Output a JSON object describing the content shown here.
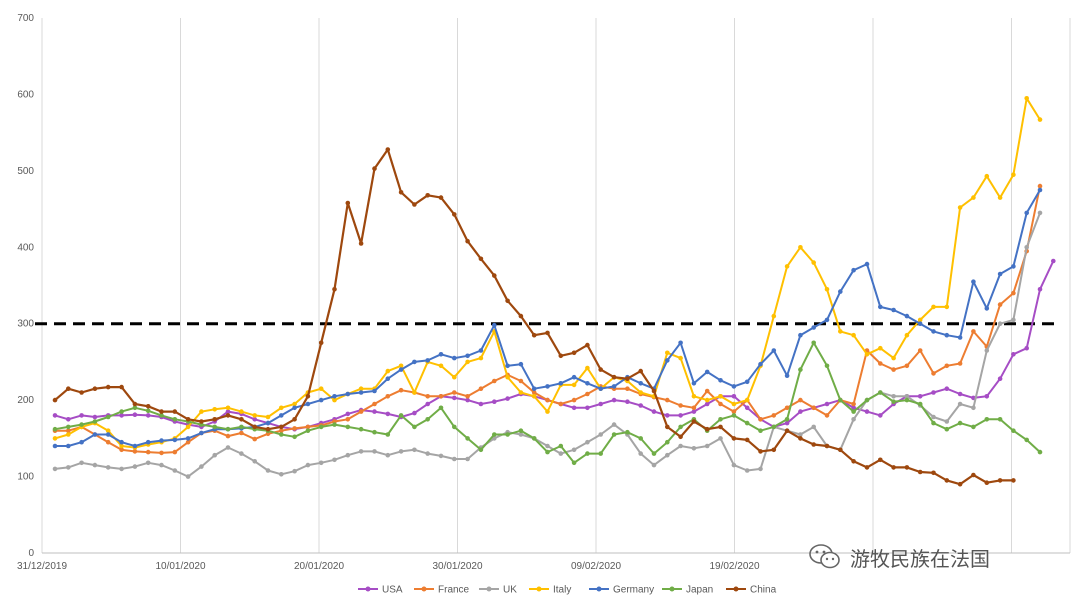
{
  "chart_data": {
    "type": "line",
    "title": "",
    "xlabel": "",
    "ylabel": "",
    "ylim": [
      0,
      700
    ],
    "yticks": [
      0,
      100,
      200,
      300,
      400,
      500,
      600,
      700
    ],
    "x_ticks": [
      "31/12/2019",
      "10/01/2020",
      "20/01/2020",
      "30/01/2020",
      "09/02/2020",
      "19/02/2020"
    ],
    "grid": "vertical",
    "legend_position": "bottom",
    "reference_line": 300,
    "colors": {
      "USA": "#a64dc5",
      "France": "#ed7d31",
      "UK": "#a5a5a5",
      "Italy": "#ffc000",
      "Germany": "#4472c4",
      "Japan": "#70ad47",
      "China": "#9e480e"
    },
    "series": [
      {
        "name": "USA",
        "values": [
          180,
          175,
          180,
          178,
          180,
          180,
          181,
          180,
          178,
          172,
          168,
          165,
          172,
          185,
          182,
          175,
          170,
          165,
          162,
          165,
          170,
          175,
          182,
          187,
          185,
          182,
          178,
          183,
          195,
          205,
          203,
          200,
          195,
          198,
          202,
          208,
          205,
          200,
          195,
          190,
          190,
          195,
          200,
          198,
          193,
          185,
          180,
          180,
          185,
          195,
          205,
          205,
          190,
          175,
          165,
          170,
          185,
          190,
          195,
          200,
          190,
          185,
          180,
          195,
          205,
          205,
          210,
          215,
          208,
          203,
          205,
          228,
          260,
          268,
          345,
          382
        ]
      },
      {
        "name": "France",
        "values": [
          160,
          160,
          165,
          155,
          145,
          135,
          133,
          132,
          131,
          132,
          145,
          157,
          160,
          153,
          157,
          149,
          156,
          160,
          163,
          165,
          167,
          172,
          175,
          185,
          195,
          205,
          213,
          210,
          205,
          205,
          210,
          205,
          215,
          225,
          233,
          225,
          210,
          200,
          195,
          200,
          208,
          218,
          215,
          215,
          208,
          204,
          200,
          193,
          190,
          212,
          195,
          185,
          200,
          175,
          180,
          190,
          200,
          190,
          180,
          200,
          195,
          265,
          248,
          240,
          245,
          265,
          235,
          245,
          248,
          290,
          270,
          325,
          340,
          395,
          480
        ]
      },
      {
        "name": "UK",
        "values": [
          110,
          112,
          118,
          115,
          112,
          110,
          113,
          118,
          115,
          108,
          100,
          113,
          128,
          138,
          130,
          120,
          108,
          103,
          107,
          115,
          118,
          122,
          128,
          133,
          133,
          128,
          133,
          135,
          130,
          127,
          123,
          123,
          138,
          150,
          158,
          155,
          150,
          140,
          130,
          135,
          145,
          155,
          168,
          155,
          130,
          115,
          128,
          140,
          137,
          140,
          150,
          115,
          108,
          110,
          165,
          160,
          155,
          165,
          140,
          135,
          175,
          200,
          210,
          205,
          205,
          193,
          178,
          172,
          195,
          190,
          265,
          300,
          305,
          400,
          445
        ]
      },
      {
        "name": "Italy",
        "values": [
          150,
          155,
          165,
          170,
          160,
          140,
          138,
          142,
          145,
          150,
          165,
          185,
          188,
          190,
          185,
          180,
          178,
          190,
          195,
          210,
          215,
          200,
          208,
          215,
          215,
          238,
          245,
          210,
          250,
          245,
          230,
          250,
          255,
          290,
          230,
          210,
          205,
          185,
          220,
          220,
          242,
          215,
          230,
          225,
          210,
          205,
          262,
          255,
          205,
          200,
          205,
          195,
          200,
          245,
          310,
          375,
          400,
          380,
          345,
          290,
          285,
          260,
          268,
          255,
          285,
          305,
          322,
          322,
          452,
          465,
          493,
          465,
          495,
          595,
          567
        ]
      },
      {
        "name": "Germany",
        "values": [
          140,
          140,
          145,
          155,
          155,
          145,
          140,
          145,
          147,
          148,
          150,
          157,
          162,
          162,
          163,
          165,
          170,
          180,
          190,
          195,
          200,
          205,
          208,
          210,
          212,
          228,
          240,
          250,
          252,
          260,
          255,
          258,
          265,
          298,
          245,
          247,
          215,
          218,
          222,
          230,
          222,
          215,
          218,
          230,
          222,
          215,
          252,
          275,
          222,
          237,
          226,
          218,
          224,
          247,
          265,
          232,
          285,
          295,
          305,
          342,
          370,
          378,
          322,
          318,
          310,
          300,
          290,
          285,
          282,
          355,
          320,
          365,
          375,
          445,
          475
        ]
      },
      {
        "name": "Japan",
        "values": [
          162,
          165,
          168,
          172,
          178,
          185,
          190,
          186,
          180,
          175,
          172,
          168,
          165,
          162,
          165,
          162,
          160,
          155,
          152,
          160,
          165,
          168,
          165,
          162,
          158,
          155,
          180,
          165,
          175,
          190,
          165,
          150,
          135,
          155,
          155,
          160,
          150,
          132,
          140,
          118,
          130,
          130,
          155,
          158,
          150,
          130,
          145,
          165,
          175,
          160,
          175,
          180,
          170,
          160,
          165,
          175,
          240,
          275,
          245,
          200,
          185,
          200,
          210,
          198,
          200,
          195,
          170,
          162,
          170,
          165,
          175,
          175,
          160,
          148,
          132
        ]
      },
      {
        "name": "China",
        "values": [
          200,
          215,
          210,
          215,
          217,
          217,
          195,
          192,
          185,
          185,
          175,
          172,
          175,
          180,
          175,
          165,
          162,
          165,
          175,
          205,
          275,
          345,
          458,
          405,
          503,
          528,
          472,
          456,
          468,
          465,
          443,
          408,
          385,
          363,
          330,
          310,
          285,
          288,
          258,
          262,
          272,
          240,
          230,
          228,
          238,
          212,
          165,
          152,
          172,
          162,
          165,
          150,
          148,
          133,
          135,
          160,
          150,
          142,
          140,
          135,
          120,
          112,
          122,
          112,
          112,
          106,
          105,
          95,
          90,
          102,
          92,
          95,
          95
        ]
      }
    ]
  },
  "legend": [
    "USA",
    "France",
    "UK",
    "Italy",
    "Germany",
    "Japan",
    "China"
  ],
  "watermark": {
    "text": "游牧民族在法国",
    "icon": "wechat-icon"
  }
}
